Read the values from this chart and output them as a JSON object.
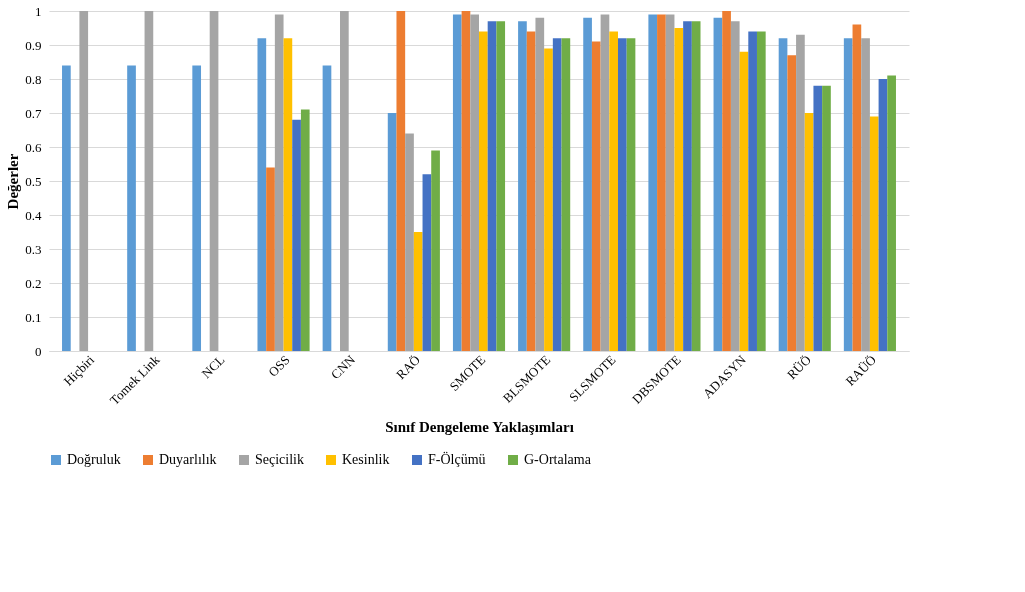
{
  "chart_data": {
    "type": "bar",
    "xlabel": "Sınıf Dengeleme Yaklaşımları",
    "ylabel": "Değerler",
    "categories": [
      "Hiçbiri",
      "Tomek Link",
      "NCL",
      "OSS",
      "CNN",
      "RAÖ",
      "SMOTE",
      "BLSMOTE",
      "SLSMOTE",
      "DBSMOTE",
      "ADASYN",
      "RÜÖ",
      "RAÜÖ"
    ],
    "series": [
      {
        "name": "Doğruluk",
        "color": "#5b9bd5",
        "values": [
          0.84,
          0.84,
          0.84,
          0.92,
          0.84,
          0.7,
          0.99,
          0.97,
          0.98,
          0.99,
          0.98,
          0.92,
          0.92
        ]
      },
      {
        "name": "Duyarlılık",
        "color": "#ed7d31",
        "values": [
          0,
          0,
          0,
          0.54,
          0,
          1.0,
          1.0,
          0.94,
          0.91,
          0.99,
          1.0,
          0.87,
          0.96
        ]
      },
      {
        "name": "Seçicilik",
        "color": "#a5a5a5",
        "values": [
          1.0,
          1.0,
          1.0,
          0.99,
          1.0,
          0.64,
          0.99,
          0.98,
          0.99,
          0.99,
          0.97,
          0.93,
          0.92
        ]
      },
      {
        "name": "Kesinlik",
        "color": "#ffc000",
        "values": [
          0,
          0,
          0,
          0.92,
          0,
          0.35,
          0.94,
          0.89,
          0.94,
          0.95,
          0.88,
          0.7,
          0.69
        ]
      },
      {
        "name": "F-Ölçümü",
        "color": "#4472c4",
        "values": [
          0,
          0,
          0,
          0.68,
          0,
          0.52,
          0.97,
          0.92,
          0.92,
          0.97,
          0.94,
          0.78,
          0.8
        ]
      },
      {
        "name": "G-Ortalama",
        "color": "#70ad47",
        "values": [
          0,
          0,
          0,
          0.71,
          0,
          0.59,
          0.97,
          0.92,
          0.92,
          0.97,
          0.94,
          0.78,
          0.81
        ]
      }
    ],
    "ylim": [
      0,
      1
    ],
    "yticks": [
      0,
      0.1,
      0.2,
      0.3,
      0.4,
      0.5,
      0.6,
      0.7,
      0.8,
      0.9,
      1
    ],
    "grid": "y",
    "legend": "bottom"
  }
}
